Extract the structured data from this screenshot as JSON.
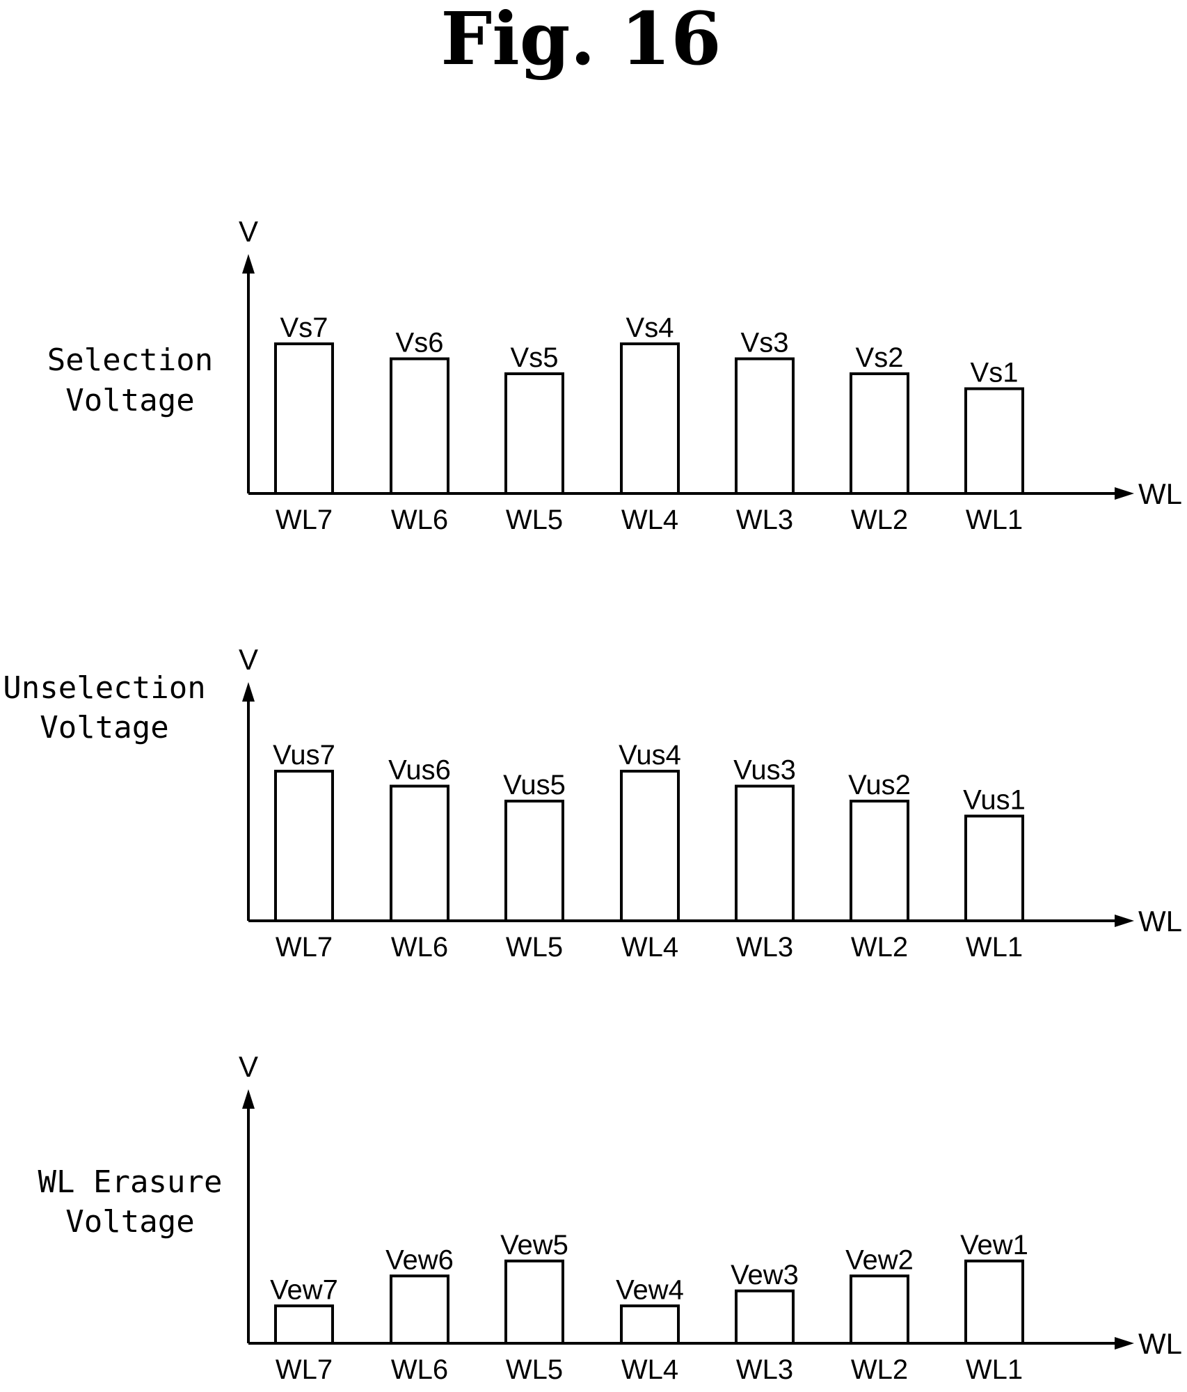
{
  "figure_title": "Fig. 16",
  "chart_data": [
    {
      "type": "bar",
      "label_lines": [
        "Selection",
        "Voltage"
      ],
      "ylabel": "V",
      "xlabel": "WL",
      "categories": [
        "WL7",
        "WL6",
        "WL5",
        "WL4",
        "WL3",
        "WL2",
        "WL1"
      ],
      "value_labels": [
        "Vs7",
        "Vs6",
        "Vs5",
        "Vs4",
        "Vs3",
        "Vs2",
        "Vs1"
      ],
      "values": [
        1.0,
        0.9,
        0.8,
        1.0,
        0.9,
        0.8,
        0.7
      ],
      "ylim": [
        0,
        1.6
      ],
      "grid": false,
      "legend": "none"
    },
    {
      "type": "bar",
      "label_lines": [
        "Unselection",
        "Voltage"
      ],
      "ylabel": "V",
      "xlabel": "WL",
      "categories": [
        "WL7",
        "WL6",
        "WL5",
        "WL4",
        "WL3",
        "WL2",
        "WL1"
      ],
      "value_labels": [
        "Vus7",
        "Vus6",
        "Vus5",
        "Vus4",
        "Vus3",
        "Vus2",
        "Vus1"
      ],
      "values": [
        1.0,
        0.9,
        0.8,
        1.0,
        0.9,
        0.8,
        0.7
      ],
      "ylim": [
        0,
        1.6
      ],
      "grid": false,
      "legend": "none"
    },
    {
      "type": "bar",
      "label_lines": [
        "WL Erasure",
        "Voltage"
      ],
      "ylabel": "V",
      "xlabel": "WL",
      "categories": [
        "WL7",
        "WL6",
        "WL5",
        "WL4",
        "WL3",
        "WL2",
        "WL1"
      ],
      "value_labels": [
        "Vew7",
        "Vew6",
        "Vew5",
        "Vew4",
        "Vew3",
        "Vew2",
        "Vew1"
      ],
      "values": [
        0.25,
        0.45,
        0.55,
        0.25,
        0.35,
        0.45,
        0.55
      ],
      "ylim": [
        0,
        1.6
      ],
      "grid": false,
      "legend": "none"
    }
  ]
}
